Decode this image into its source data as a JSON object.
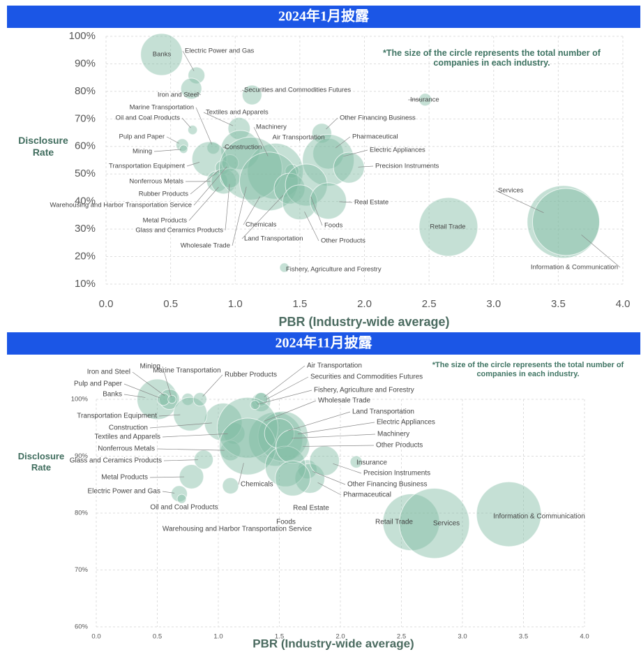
{
  "chart_data": [
    {
      "type": "bubble",
      "title": "2024年1月披露",
      "note": "*The size of the circle represents the total number of companies in each industry.",
      "xlabel": "PBR (Industry-wide average)",
      "ylabel": "Disclosure Rate",
      "color": "#7fbaa2",
      "grid": true,
      "categories": [
        "Banks",
        "Electric Power and Gas",
        "Iron and Steel",
        "Securities and Commodities Futures",
        "Insurance",
        "Marine Transportation",
        "Oil and Coal Products",
        "Textiles and Apparels",
        "Other Financing Business",
        "Pulp and Paper",
        "Mining",
        "Construction",
        "Machinery",
        "Air Transportation",
        "Pharmaceutical",
        "Electric Appliances",
        "Precision Instruments",
        "Transportation Equipment",
        "Nonferrous Metals",
        "Rubber Products",
        "Warehousing and Harbor Transportation Service",
        "Metal Products",
        "Glass and Ceramics Products",
        "Wholesale Trade",
        "Chemicals",
        "Land Transportation",
        "Foods",
        "Other Products",
        "Real Estate",
        "Fishery, Agriculture and Forestry",
        "Retail Trade",
        "Services",
        "Information & Communication"
      ],
      "x": [
        0.43,
        0.7,
        0.66,
        1.13,
        2.47,
        0.83,
        0.67,
        1.03,
        1.67,
        0.59,
        0.6,
        1.04,
        1.31,
        1.44,
        1.72,
        1.72,
        1.88,
        0.8,
        0.86,
        0.9,
        0.96,
        0.91,
        0.96,
        1.12,
        1.26,
        1.42,
        1.55,
        1.5,
        1.72,
        1.38,
        2.65,
        3.54,
        3.56
      ],
      "y": [
        93.4,
        85.8,
        81,
        78.7,
        77,
        59.5,
        66,
        66.5,
        64.8,
        60.5,
        59,
        58.7,
        51,
        51,
        57.4,
        55,
        52.3,
        55.4,
        47.3,
        52.3,
        54,
        47.3,
        48.5,
        52,
        47.3,
        44.7,
        46,
        39.7,
        40.2,
        16,
        30.8,
        32.6,
        32.6
      ],
      "size": [
        100,
        16,
        25,
        22,
        9,
        9,
        5,
        28,
        22,
        9,
        4,
        87,
        178,
        11,
        54,
        152,
        54,
        69,
        25,
        11,
        16,
        36,
        22,
        225,
        196,
        54,
        100,
        69,
        75,
        5,
        196,
        300,
        256
      ],
      "xlim": [
        0,
        4
      ],
      "ylim": [
        10,
        100
      ],
      "xticks": [
        {
          "value": 0,
          "label": "0.0"
        },
        0.5,
        {
          "value": 1,
          "label": "1.0"
        },
        1.5,
        {
          "value": 2,
          "label": "2.0"
        },
        2.5,
        {
          "value": 3,
          "label": "3.0"
        },
        3.5,
        {
          "value": 4,
          "label": "4.0"
        }
      ],
      "yticks": [
        {
          "value": 10,
          "label": "10%"
        },
        {
          "value": 20,
          "label": "20%"
        },
        {
          "value": 30,
          "label": "30%"
        },
        {
          "value": 40,
          "label": "40%"
        },
        {
          "value": 50,
          "label": "50%"
        },
        {
          "value": 60,
          "label": "60%"
        },
        {
          "value": 70,
          "label": "70%"
        },
        {
          "value": 80,
          "label": "80%"
        },
        {
          "value": 90,
          "label": "90%"
        },
        {
          "value": 100,
          "label": "100%"
        }
      ]
    },
    {
      "type": "bubble",
      "title": "2024年11月披露",
      "note": "*The size of the circle represents the total number of companies in each industry.",
      "xlabel": "PBR (Industry-wide average)",
      "ylabel": "Disclosure Rate",
      "color": "#7fbaa2",
      "grid": true,
      "categories": [
        "Banks",
        "Electric Power and Gas",
        "Iron and Steel",
        "Securities and Commodities Futures",
        "Insurance",
        "Marine Transportation",
        "Oil and Coal Products",
        "Textiles and Apparels",
        "Other Financing Business",
        "Pulp and Paper",
        "Mining",
        "Construction",
        "Machinery",
        "Air Transportation",
        "Pharmaceutical",
        "Electric Appliances",
        "Precision Instruments",
        "Transportation Equipment",
        "Nonferrous Metals",
        "Rubber Products",
        "Warehousing and Harbor Transportation Service",
        "Metal Products",
        "Glass and Ceramics Products",
        "Wholesale Trade",
        "Chemicals",
        "Land Transportation",
        "Foods",
        "Other Products",
        "Real Estate",
        "Fishery, Agriculture and Forestry",
        "Retail Trade",
        "Services",
        "Information & Communication"
      ],
      "x": [
        0.5,
        0.68,
        0.6,
        1.35,
        2.13,
        0.75,
        0.7,
        1.13,
        1.73,
        0.55,
        0.62,
        1.04,
        1.47,
        1.35,
        1.75,
        1.53,
        1.87,
        0.77,
        1.1,
        0.85,
        1.1,
        0.78,
        0.88,
        1.24,
        1.24,
        1.5,
        1.55,
        1.61,
        1.61,
        1.3,
        2.58,
        2.77,
        3.38
      ],
      "y": [
        100,
        83.4,
        100,
        99.5,
        89,
        100,
        82.5,
        94,
        87.7,
        100,
        100,
        96,
        93,
        100,
        86.1,
        93.5,
        89.2,
        97.4,
        91,
        100,
        84.8,
        86.4,
        89.4,
        95,
        91.7,
        94,
        88.2,
        91.7,
        86.1,
        99,
        78.4,
        78.2,
        79.8
      ],
      "size": [
        100,
        16,
        25,
        22,
        9,
        9,
        5,
        28,
        22,
        9,
        4,
        87,
        178,
        11,
        54,
        152,
        54,
        69,
        25,
        11,
        16,
        36,
        22,
        225,
        196,
        54,
        100,
        69,
        75,
        5,
        196,
        300,
        256
      ],
      "xlim": [
        0,
        4
      ],
      "ylim": [
        60,
        100
      ],
      "xticks": [
        {
          "value": 0,
          "label": "0.0"
        },
        0.5,
        {
          "value": 1,
          "label": "1.0"
        },
        1.5,
        {
          "value": 2,
          "label": "2.0"
        },
        2.5,
        {
          "value": 3,
          "label": "3.0"
        },
        3.5,
        {
          "value": 4,
          "label": "4.0"
        }
      ],
      "yticks": [
        {
          "value": 60,
          "label": "60%"
        },
        {
          "value": 70,
          "label": "70%"
        },
        {
          "value": 80,
          "label": "80%"
        },
        {
          "value": 90,
          "label": "90%"
        },
        {
          "value": 100,
          "label": "100%"
        }
      ]
    }
  ]
}
